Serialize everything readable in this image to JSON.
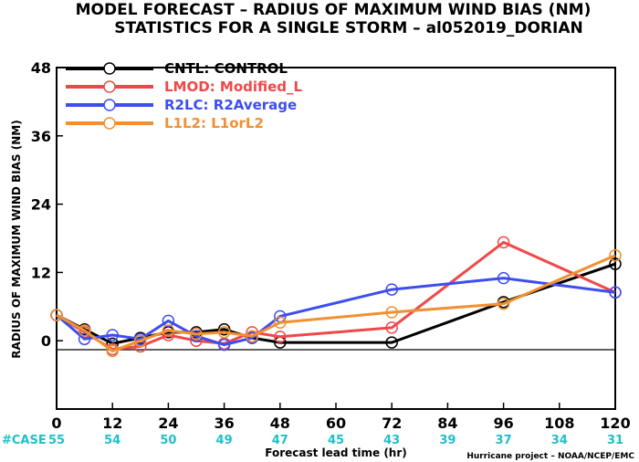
{
  "chart_data": {
    "type": "line",
    "title": "MODEL FORECAST – RADIUS OF MAXIMUM WIND BIAS (NM)",
    "subtitle": "STATISTICS FOR A SINGLE STORM – al052019_DORIAN",
    "xlabel": "Forecast lead time (hr)",
    "ylabel": "RADIUS OF MAXIMUM WIND BIAS (NM)",
    "xlim": [
      0,
      120
    ],
    "ylim": [
      -12,
      48
    ],
    "xticks": [
      "0",
      "12",
      "24",
      "36",
      "48",
      "60",
      "72",
      "84",
      "96",
      "108",
      "120"
    ],
    "yticks": [
      "0",
      "12",
      "24",
      "36",
      "48"
    ],
    "grid": false,
    "legend_position": "top-left",
    "series": [
      {
        "name": "CNTL: CONTROL",
        "color": "#000000",
        "x": [
          0,
          6,
          12,
          18,
          24,
          30,
          36,
          42,
          48,
          72,
          96,
          120
        ],
        "y": [
          4.5,
          2.0,
          -0.5,
          0.5,
          1.5,
          1.5,
          2.0,
          0.5,
          -0.3,
          -0.3,
          6.8,
          13.5
        ]
      },
      {
        "name": "LMOD: Modified_L",
        "color": "#f04848",
        "x": [
          0,
          6,
          12,
          18,
          24,
          30,
          36,
          42,
          48,
          72,
          96,
          120
        ],
        "y": [
          4.5,
          1.5,
          -1.5,
          -1.0,
          1.0,
          0.0,
          -0.5,
          1.5,
          0.7,
          2.3,
          17.3,
          8.5
        ]
      },
      {
        "name": "R2LC: R2Average",
        "color": "#3d4df0",
        "x": [
          0,
          6,
          12,
          18,
          24,
          30,
          36,
          42,
          48,
          72,
          96,
          120
        ],
        "y": [
          4.5,
          0.3,
          1.0,
          0.3,
          3.5,
          0.8,
          -0.7,
          0.5,
          4.3,
          9.0,
          11.0,
          8.5
        ]
      },
      {
        "name": "L1L2: L1orL2",
        "color": "#f09030",
        "x": [
          0,
          6,
          12,
          18,
          24,
          30,
          36,
          42,
          48,
          72,
          96,
          120
        ],
        "y": [
          4.5,
          1.8,
          -1.8,
          0.0,
          1.8,
          1.2,
          1.5,
          0.8,
          3.2,
          5.0,
          6.5,
          15.0
        ]
      }
    ],
    "case_counts": {
      "label": "#CASE",
      "color": "#1fc0c8",
      "x": [
        0,
        12,
        24,
        36,
        48,
        60,
        72,
        84,
        96,
        108,
        120
      ],
      "values": [
        "55",
        "54",
        "50",
        "49",
        "47",
        "45",
        "43",
        "39",
        "37",
        "34",
        "31"
      ]
    },
    "credit": "Hurricane project – NOAA/NCEP/EMC"
  }
}
